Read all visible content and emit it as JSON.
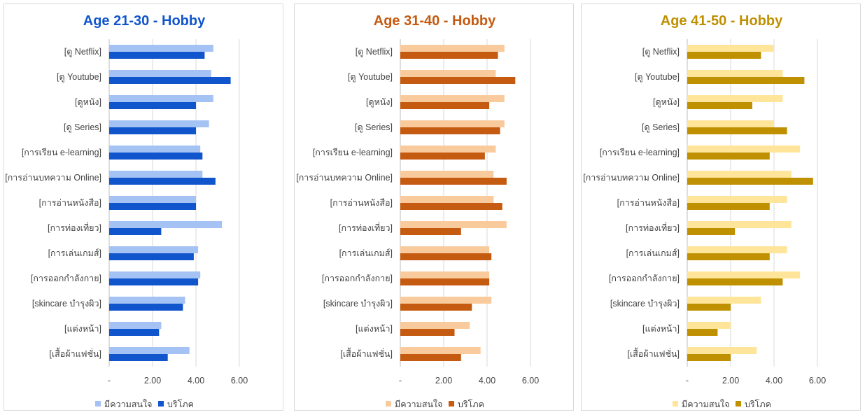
{
  "chart_data": [
    {
      "type": "bar",
      "orientation": "horizontal",
      "title": "Age 21-30  - Hobby",
      "title_color": "#1155cc",
      "categories": [
        "[ดู Netflix]",
        "[ดู Youtube]",
        "[ดูหนัง]",
        "[ดู Series]",
        "[การเรียน e-learning]",
        "[การอ่านบทความ Online]",
        "[การอ่านหนังสือ]",
        "[การท่องเที่ยว]",
        "[การเล่นเกมส์]",
        "[การออกกำลังกาย]",
        "[skincare บำรุงผิว]",
        "[แต่งหน้า]",
        "[เสื้อผ้าแฟชั่น]"
      ],
      "series": [
        {
          "name": "มีความสนใจ",
          "color": "#a4c2f4",
          "values": [
            4.8,
            4.7,
            4.8,
            4.6,
            4.2,
            4.3,
            4.0,
            5.2,
            4.1,
            4.2,
            3.5,
            2.4,
            3.7
          ]
        },
        {
          "name": "บริโภค",
          "color": "#1155cc",
          "values": [
            4.4,
            5.6,
            4.0,
            4.0,
            4.3,
            4.9,
            4.0,
            2.4,
            3.9,
            4.1,
            3.4,
            2.3,
            2.7
          ]
        }
      ],
      "xlim": [
        0,
        6
      ],
      "xticks": [
        "-",
        "2.00",
        "4.00",
        "6.00"
      ],
      "grid": true,
      "legend_position": "bottom"
    },
    {
      "type": "bar",
      "orientation": "horizontal",
      "title": "Age 31-40  - Hobby",
      "title_color": "#c55a11",
      "categories": [
        "[ดู Netflix]",
        "[ดู Youtube]",
        "[ดูหนัง]",
        "[ดู Series]",
        "[การเรียน e-learning]",
        "[การอ่านบทความ Online]",
        "[การอ่านหนังสือ]",
        "[การท่องเที่ยว]",
        "[การเล่นเกมส์]",
        "[การออกกำลังกาย]",
        "[skincare บำรุงผิว]",
        "[แต่งหน้า]",
        "[เสื้อผ้าแฟชั่น]"
      ],
      "series": [
        {
          "name": "มีความสนใจ",
          "color": "#f9cb9c",
          "values": [
            4.8,
            4.4,
            4.8,
            4.8,
            4.4,
            4.3,
            4.3,
            4.9,
            4.1,
            4.1,
            4.2,
            3.2,
            3.7
          ]
        },
        {
          "name": "บริโภค",
          "color": "#c55a11",
          "values": [
            4.5,
            5.3,
            4.1,
            4.6,
            3.9,
            4.9,
            4.7,
            2.8,
            4.2,
            4.1,
            3.3,
            2.5,
            2.8
          ]
        }
      ],
      "xlim": [
        0,
        6
      ],
      "xticks": [
        "-",
        "2.00",
        "4.00",
        "6.00"
      ],
      "grid": true,
      "legend_position": "bottom"
    },
    {
      "type": "bar",
      "orientation": "horizontal",
      "title": "Age 41-50  - Hobby",
      "title_color": "#bf9000",
      "categories": [
        "[ดู Netflix]",
        "[ดู Youtube]",
        "[ดูหนัง]",
        "[ดู Series]",
        "[การเรียน e-learning]",
        "[การอ่านบทความ Online]",
        "[การอ่านหนังสือ]",
        "[การท่องเที่ยว]",
        "[การเล่นเกมส์]",
        "[การออกกำลังกาย]",
        "[skincare บำรุงผิว]",
        "[แต่งหน้า]",
        "[เสื้อผ้าแฟชั่น]"
      ],
      "series": [
        {
          "name": "มีความสนใจ",
          "color": "#ffe599",
          "values": [
            4.0,
            4.4,
            4.4,
            4.0,
            5.2,
            4.8,
            4.6,
            4.8,
            4.6,
            5.2,
            3.4,
            2.0,
            3.2
          ]
        },
        {
          "name": "บริโภค",
          "color": "#bf9000",
          "values": [
            3.4,
            5.4,
            3.0,
            4.6,
            3.8,
            5.8,
            3.8,
            2.2,
            3.8,
            4.4,
            2.0,
            1.4,
            2.0
          ]
        }
      ],
      "xlim": [
        0,
        6
      ],
      "xticks": [
        "-",
        "2.00",
        "4.00",
        "6.00"
      ],
      "grid": true,
      "legend_position": "bottom"
    }
  ]
}
